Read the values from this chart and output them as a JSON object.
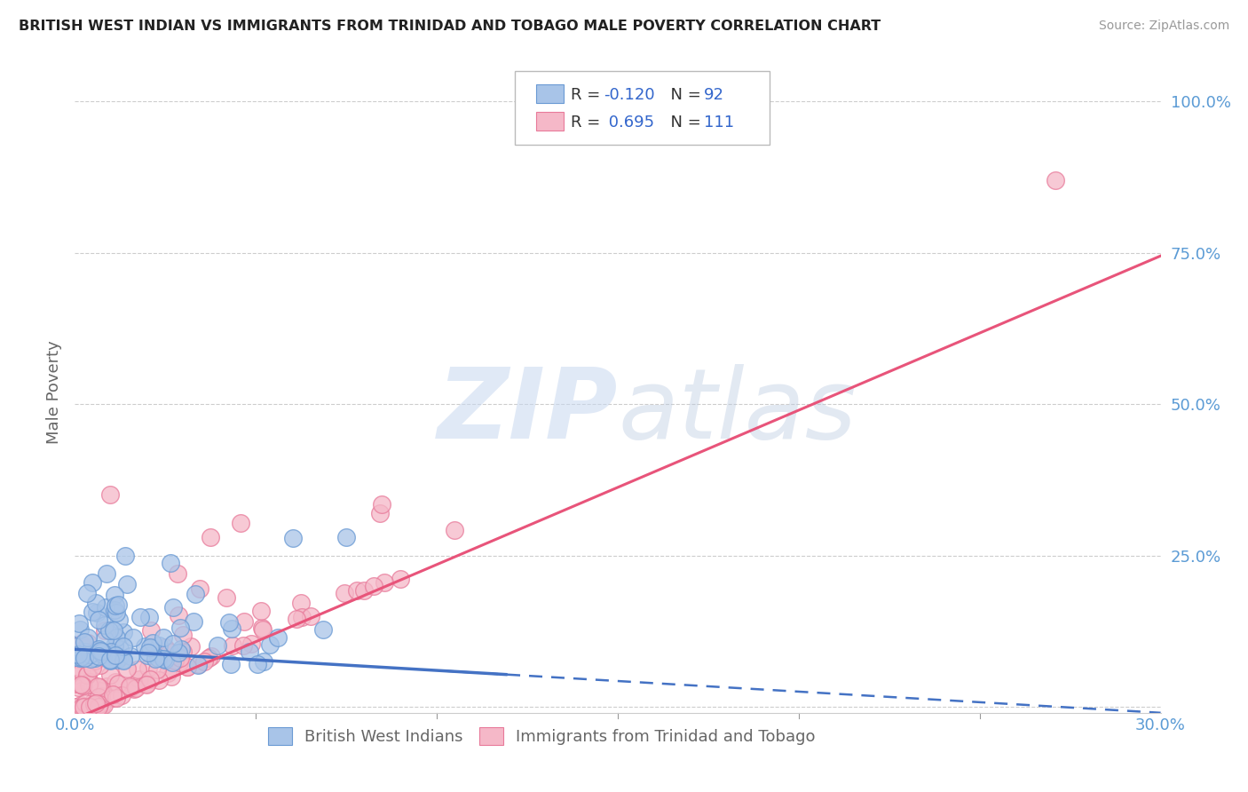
{
  "title": "BRITISH WEST INDIAN VS IMMIGRANTS FROM TRINIDAD AND TOBAGO MALE POVERTY CORRELATION CHART",
  "source": "Source: ZipAtlas.com",
  "ylabel": "Male Poverty",
  "xlim": [
    0.0,
    0.3
  ],
  "ylim": [
    -0.01,
    1.05
  ],
  "xticks": [
    0.0,
    0.05,
    0.1,
    0.15,
    0.2,
    0.25,
    0.3
  ],
  "xticklabels": [
    "0.0%",
    "",
    "",
    "",
    "",
    "",
    "30.0%"
  ],
  "yticks": [
    0.0,
    0.25,
    0.5,
    0.75,
    1.0
  ],
  "yticklabels": [
    "",
    "25.0%",
    "50.0%",
    "75.0%",
    "100.0%"
  ],
  "blue_color": "#A8C4E8",
  "pink_color": "#F5B8C8",
  "blue_edge": "#6A9AD4",
  "pink_edge": "#E87A9A",
  "trend_blue_color": "#4472C4",
  "trend_pink_color": "#E8547A",
  "watermark": "ZIPatlas",
  "watermark_color": "#C8D8ED",
  "blue_n": 92,
  "pink_n": 111,
  "axis_label_color": "#5B9BD5",
  "tick_color": "#5B9BD5",
  "grid_color": "#C8C8C8",
  "background_color": "#FFFFFF",
  "pink_trend_slope": 2.55,
  "pink_trend_intercept": -0.02,
  "blue_trend_slope": -0.35,
  "blue_trend_intercept": 0.095
}
